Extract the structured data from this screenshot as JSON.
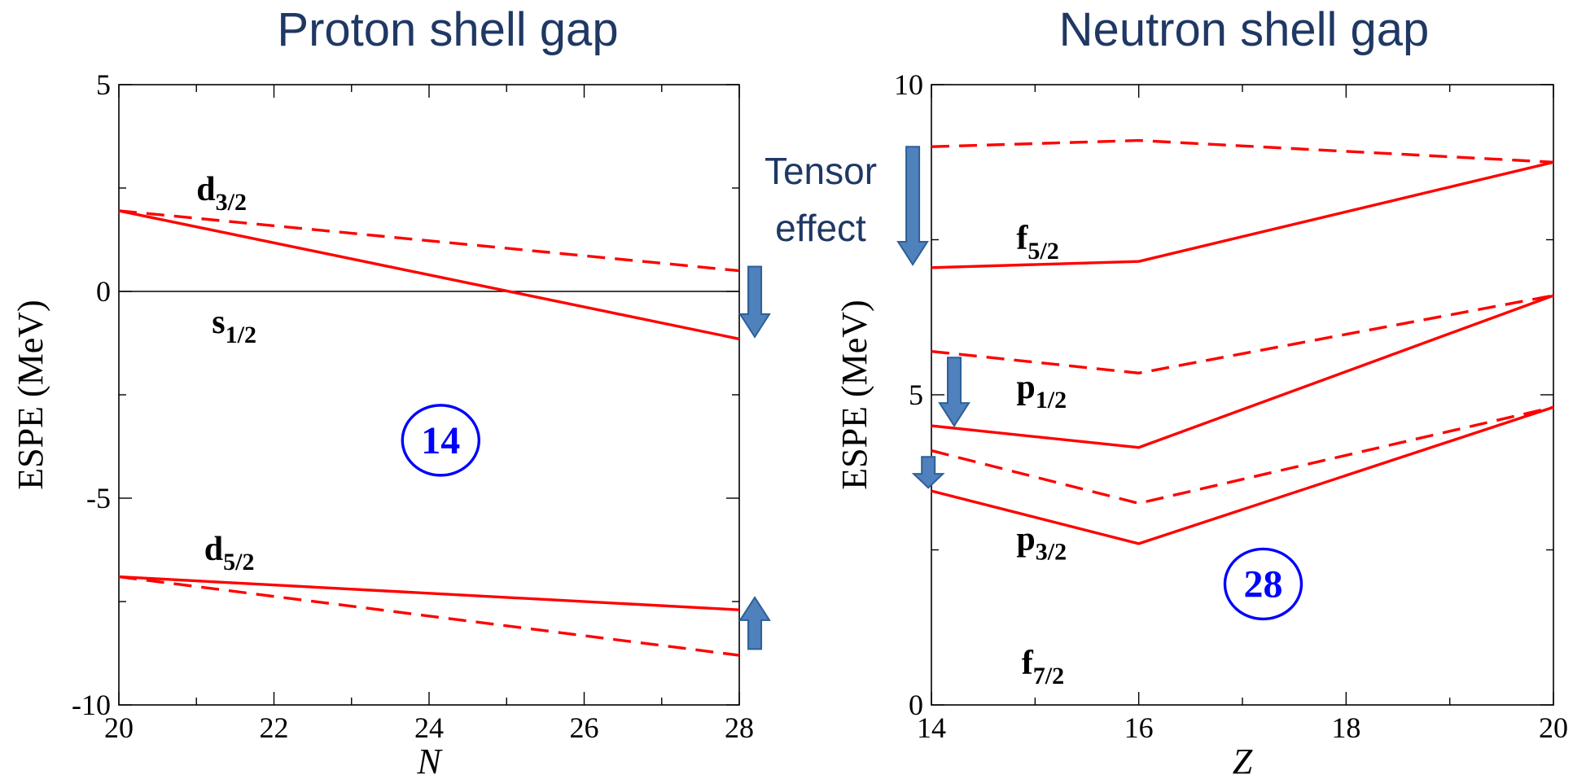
{
  "colors": {
    "series": "#ff0000",
    "title": "#1f3864",
    "magic": "#0000ff",
    "arrow": "#4f81bd",
    "arrow_edge": "#2e5f95",
    "axis": "#000000"
  },
  "annotation": {
    "line1": "Tensor",
    "line2": "effect"
  },
  "chart_data": [
    {
      "type": "line",
      "title": "Proton shell gap",
      "xlabel": "N",
      "ylabel": "ESPE (MeV)",
      "xlim": [
        20,
        28
      ],
      "ylim": [
        -10,
        5
      ],
      "xticks": [
        20,
        22,
        24,
        26,
        28
      ],
      "xtick_labels": [
        "20",
        "22",
        "24",
        "26",
        "28"
      ],
      "yticks": [
        -10,
        -5,
        0,
        5
      ],
      "ytick_labels": [
        "-10",
        "-5",
        "0",
        "5"
      ],
      "grid": false,
      "reference_line": 0,
      "series": [
        {
          "style": "solid",
          "level": "d3/2",
          "x": [
            20,
            28
          ],
          "y": [
            1.95,
            -1.15
          ]
        },
        {
          "style": "dashed",
          "level": "d3/2",
          "x": [
            20,
            28
          ],
          "y": [
            1.95,
            0.5
          ]
        },
        {
          "style": "solid",
          "level": "d5/2",
          "x": [
            20,
            28
          ],
          "y": [
            -6.9,
            -7.7
          ]
        },
        {
          "style": "dashed",
          "level": "d5/2",
          "x": [
            20,
            28
          ],
          "y": [
            -6.9,
            -8.8
          ]
        }
      ],
      "level_labels": [
        {
          "main": "d",
          "sub": "3/2",
          "x": 21.0,
          "y": 2.2
        },
        {
          "main": "s",
          "sub": "1/2",
          "x": 21.2,
          "y": -1.0
        },
        {
          "main": "d",
          "sub": "5/2",
          "x": 21.1,
          "y": -6.5
        }
      ],
      "magic_number": {
        "label": "14",
        "x": 24.15,
        "y": -3.6
      },
      "arrows": [
        {
          "direction": "down",
          "x": 28.2,
          "y_from": 0.6,
          "y_to": -1.1
        },
        {
          "direction": "up",
          "x": 28.2,
          "y_from": -8.65,
          "y_to": -7.4
        }
      ]
    },
    {
      "type": "line",
      "title": "Neutron shell gap",
      "xlabel": "Z",
      "ylabel": "ESPE (MeV)",
      "xlim": [
        14,
        20
      ],
      "ylim": [
        0,
        10
      ],
      "xticks": [
        14,
        16,
        18,
        20
      ],
      "xtick_labels": [
        "14",
        "16",
        "18",
        "20"
      ],
      "yticks": [
        0,
        5,
        10
      ],
      "ytick_labels": [
        "0",
        "5",
        "10"
      ],
      "grid": false,
      "series": [
        {
          "style": "dashed",
          "level": "f5/2",
          "x": [
            14,
            16,
            20
          ],
          "y": [
            9.0,
            9.1,
            8.75
          ]
        },
        {
          "style": "solid",
          "level": "f5/2",
          "x": [
            14,
            16,
            20
          ],
          "y": [
            7.05,
            7.15,
            8.75
          ]
        },
        {
          "style": "dashed",
          "level": "p1/2",
          "x": [
            14,
            16,
            20
          ],
          "y": [
            5.7,
            5.35,
            6.6
          ]
        },
        {
          "style": "solid",
          "level": "p1/2",
          "x": [
            14,
            16,
            20
          ],
          "y": [
            4.5,
            4.15,
            6.6
          ]
        },
        {
          "style": "dashed",
          "level": "p3/2",
          "x": [
            14,
            16,
            20
          ],
          "y": [
            4.1,
            3.25,
            4.8
          ]
        },
        {
          "style": "solid",
          "level": "p3/2",
          "x": [
            14,
            16,
            20
          ],
          "y": [
            3.45,
            2.6,
            4.8
          ]
        }
      ],
      "level_labels": [
        {
          "main": "f",
          "sub": "5/2",
          "x": 14.82,
          "y": 7.35
        },
        {
          "main": "p",
          "sub": "1/2",
          "x": 14.82,
          "y": 4.95
        },
        {
          "main": "p",
          "sub": "3/2",
          "x": 14.82,
          "y": 2.5
        },
        {
          "main": "f",
          "sub": "7/2",
          "x": 14.87,
          "y": 0.5
        }
      ],
      "magic_number": {
        "label": "28",
        "x": 17.2,
        "y": 1.95
      },
      "arrows": [
        {
          "direction": "down",
          "x": 13.82,
          "y_from": 9.0,
          "y_to": 7.1
        },
        {
          "direction": "down",
          "x": 14.22,
          "y_from": 5.6,
          "y_to": 4.5
        },
        {
          "direction": "down",
          "x": 13.97,
          "y_from": 4.0,
          "y_to": 3.5
        }
      ]
    }
  ]
}
